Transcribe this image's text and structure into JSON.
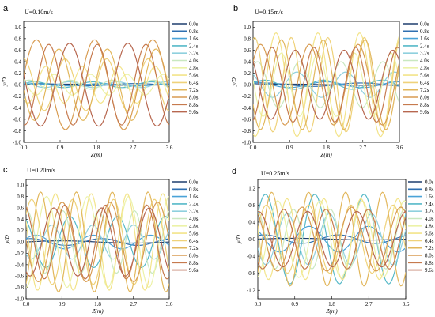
{
  "legend_labels": [
    "0.0s",
    "0.8s",
    "1.6s",
    "2.4s",
    "3.2s",
    "4.0s",
    "4.8s",
    "5.6s",
    "6.4s",
    "7.2s",
    "8.0s",
    "8.8s",
    "9.6s"
  ],
  "legend_colors": [
    "#1f3f6e",
    "#2f6fb0",
    "#4aa3d8",
    "#56b9c8",
    "#8fd0de",
    "#c9e8c0",
    "#ecf2a8",
    "#f3e48a",
    "#efd27a",
    "#e2b75c",
    "#d89c52",
    "#c67a4e",
    "#b7674f"
  ],
  "chart_data": [
    {
      "panel": "a",
      "velocity_label": "U=0.10m/s",
      "type": "line",
      "xlabel": "Z(m)",
      "ylabel": "y/D",
      "xlim": [
        0,
        3.6
      ],
      "ylim": [
        -1.0,
        1.1
      ],
      "xticks": [
        "0.0",
        "0.9",
        "1.8",
        "2.7",
        "3.6"
      ],
      "yticks": [
        "-1.0",
        "-0.8",
        "-0.6",
        "-0.4",
        "-0.2",
        "0.0",
        "0.2",
        "0.4",
        "0.6",
        "0.8",
        "1.0"
      ],
      "series": [
        {
          "name": "0.0s",
          "A": 0.01,
          "k": 2,
          "p": 0.0
        },
        {
          "name": "0.8s",
          "A": 0.02,
          "k": 3,
          "p": 0.6
        },
        {
          "name": "1.6s",
          "A": 0.02,
          "k": 4,
          "p": 1.1
        },
        {
          "name": "2.4s",
          "A": 0.05,
          "k": 5,
          "p": 0.4
        },
        {
          "name": "3.2s",
          "A": 0.05,
          "k": 6,
          "p": 2.0
        },
        {
          "name": "4.0s",
          "A": 0.08,
          "k": 7,
          "p": 0.8
        },
        {
          "name": "4.8s",
          "A": 0.18,
          "k": 8,
          "p": 2.6
        },
        {
          "name": "5.6s",
          "A": 0.32,
          "k": 8,
          "p": 4.0
        },
        {
          "name": "6.4s",
          "A": 0.45,
          "k": 7,
          "p": 1.6
        },
        {
          "name": "7.2s",
          "A": 0.62,
          "k": 6,
          "p": 3.3
        },
        {
          "name": "8.0s",
          "A": 0.78,
          "k": 5,
          "p": 0.2
        },
        {
          "name": "8.8s",
          "A": 0.7,
          "k": 6,
          "p": 4.6
        },
        {
          "name": "9.6s",
          "A": 0.72,
          "k": 5,
          "p": 2.9
        }
      ]
    },
    {
      "panel": "b",
      "velocity_label": "U=0.15m/s",
      "type": "line",
      "xlabel": "Z(m)",
      "ylabel": "y/D",
      "xlim": [
        0,
        3.6
      ],
      "ylim": [
        -1.0,
        1.1
      ],
      "xticks": [
        "0.0",
        "0.9",
        "1.8",
        "2.7",
        "3.6"
      ],
      "yticks": [
        "-1.0",
        "-0.8",
        "-0.6",
        "-0.4",
        "-0.2",
        "0.0",
        "0.2",
        "0.4",
        "0.6",
        "0.8",
        "1.0"
      ],
      "series": [
        {
          "name": "0.0s",
          "A": 0.01,
          "k": 2,
          "p": 0.0
        },
        {
          "name": "0.8s",
          "A": 0.03,
          "k": 3,
          "p": 0.9
        },
        {
          "name": "1.6s",
          "A": 0.05,
          "k": 4,
          "p": 1.6
        },
        {
          "name": "2.4s",
          "A": 0.08,
          "k": 5,
          "p": 0.3
        },
        {
          "name": "3.2s",
          "A": 0.22,
          "k": 6,
          "p": 2.2
        },
        {
          "name": "4.0s",
          "A": 0.4,
          "k": 7,
          "p": 0.9
        },
        {
          "name": "4.8s",
          "A": 0.55,
          "k": 8,
          "p": 3.0
        },
        {
          "name": "5.6s",
          "A": 0.9,
          "k": 7,
          "p": 4.4
        },
        {
          "name": "6.4s",
          "A": 0.82,
          "k": 8,
          "p": 1.3
        },
        {
          "name": "7.2s",
          "A": 0.78,
          "k": 7,
          "p": 3.6
        },
        {
          "name": "8.0s",
          "A": 0.7,
          "k": 6,
          "p": 0.6
        },
        {
          "name": "8.8s",
          "A": 0.65,
          "k": 7,
          "p": 5.0
        },
        {
          "name": "9.6s",
          "A": 0.6,
          "k": 6,
          "p": 2.4
        }
      ]
    },
    {
      "panel": "c",
      "velocity_label": "U=0.20m/s",
      "type": "line",
      "xlabel": "Z(m)",
      "ylabel": "y/D",
      "xlim": [
        0,
        3.6
      ],
      "ylim": [
        -1.0,
        1.1
      ],
      "xticks": [
        "0.0",
        "0.9",
        "1.8",
        "2.7",
        "3.6"
      ],
      "yticks": [
        "-1.0",
        "-0.8",
        "-0.6",
        "-0.4",
        "-0.2",
        "0.0",
        "0.2",
        "0.4",
        "0.6",
        "0.8",
        "1.0"
      ],
      "series": [
        {
          "name": "0.0s",
          "A": 0.02,
          "k": 2,
          "p": 0.0
        },
        {
          "name": "0.8s",
          "A": 0.06,
          "k": 4,
          "p": 1.2
        },
        {
          "name": "1.6s",
          "A": 0.12,
          "k": 5,
          "p": 0.5
        },
        {
          "name": "2.4s",
          "A": 0.45,
          "k": 6,
          "p": 2.1
        },
        {
          "name": "3.2s",
          "A": 0.3,
          "k": 7,
          "p": 3.9
        },
        {
          "name": "4.0s",
          "A": 0.55,
          "k": 8,
          "p": 1.4
        },
        {
          "name": "4.8s",
          "A": 0.8,
          "k": 7,
          "p": 4.7
        },
        {
          "name": "5.6s",
          "A": 0.85,
          "k": 8,
          "p": 2.7
        },
        {
          "name": "6.4s",
          "A": 0.75,
          "k": 7,
          "p": 0.7
        },
        {
          "name": "7.2s",
          "A": 0.88,
          "k": 8,
          "p": 5.3
        },
        {
          "name": "8.0s",
          "A": 0.7,
          "k": 6,
          "p": 3.1
        },
        {
          "name": "8.8s",
          "A": 0.65,
          "k": 7,
          "p": 1.9
        },
        {
          "name": "9.6s",
          "A": 0.6,
          "k": 6,
          "p": 4.2
        }
      ]
    },
    {
      "panel": "d",
      "velocity_label": "U=0.25m/s",
      "type": "line",
      "xlabel": "Z(m)",
      "ylabel": "y/D",
      "xlim": [
        0,
        3.6
      ],
      "ylim": [
        -1.4,
        1.4
      ],
      "xticks": [
        "0.0",
        "0.9",
        "1.8",
        "2.7",
        "3.6"
      ],
      "yticks": [
        "-1.2",
        "-0.8",
        "-0.4",
        "0.0",
        "0.4",
        "0.8",
        "1.2"
      ],
      "series": [
        {
          "name": "0.0s",
          "A": 0.02,
          "k": 2,
          "p": 0.0
        },
        {
          "name": "0.8s",
          "A": 0.1,
          "k": 4,
          "p": 1.0
        },
        {
          "name": "1.6s",
          "A": 0.3,
          "k": 5,
          "p": 2.4
        },
        {
          "name": "2.4s",
          "A": 1.05,
          "k": 6,
          "p": 0.6
        },
        {
          "name": "3.2s",
          "A": 0.6,
          "k": 7,
          "p": 3.5
        },
        {
          "name": "4.0s",
          "A": 0.7,
          "k": 8,
          "p": 1.8
        },
        {
          "name": "4.8s",
          "A": 0.9,
          "k": 7,
          "p": 4.9
        },
        {
          "name": "5.6s",
          "A": 0.95,
          "k": 8,
          "p": 2.9
        },
        {
          "name": "6.4s",
          "A": 0.8,
          "k": 7,
          "p": 0.3
        },
        {
          "name": "7.2s",
          "A": 1.1,
          "k": 8,
          "p": 5.5
        },
        {
          "name": "8.0s",
          "A": 0.75,
          "k": 6,
          "p": 2.2
        },
        {
          "name": "8.8s",
          "A": 0.7,
          "k": 7,
          "p": 4.0
        },
        {
          "name": "9.6s",
          "A": 0.65,
          "k": 6,
          "p": 1.5
        }
      ]
    }
  ]
}
